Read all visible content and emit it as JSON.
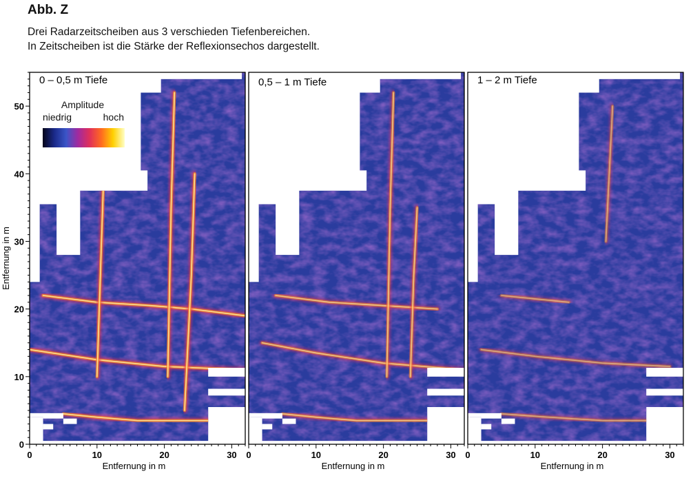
{
  "figure": {
    "label": "Abb. Z",
    "caption": [
      "Drei Radarzeitscheiben aus 3 verschieden Tiefenbereichen.",
      "In Zeitscheiben ist die Stärke der Reflexionsechos dargestellt."
    ]
  },
  "legend": {
    "title": "Amplitude",
    "low_label": "niedrig",
    "high_label": "hoch",
    "colors": [
      "#05051a",
      "#1a2a8a",
      "#3b55c8",
      "#a02aa0",
      "#e0305a",
      "#ff6a20",
      "#ffd000",
      "#ffffc8"
    ]
  },
  "chart_data": [
    {
      "type": "heatmap",
      "title": "0 – 0,5 m Tiefe",
      "xlabel": "Entfernung in m",
      "ylabel": "Entfernung in m",
      "xlim": [
        0,
        32
      ],
      "ylim": [
        0,
        55
      ],
      "xticks": [
        0,
        10,
        20,
        30
      ],
      "yticks": [
        0,
        10,
        20,
        30,
        40,
        50
      ],
      "reflection_lines": [
        {
          "x": [
            5,
            10,
            16,
            22,
            28,
            32
          ],
          "y": [
            4.5,
            4,
            3.5,
            3.5,
            3.5,
            3.5
          ]
        },
        {
          "x": [
            0,
            10,
            20,
            32
          ],
          "y": [
            14,
            12.5,
            11.5,
            11
          ]
        },
        {
          "x": [
            2,
            10,
            18,
            24,
            32
          ],
          "y": [
            22,
            21,
            20.5,
            20,
            19
          ]
        },
        {
          "x": [
            10,
            10.5,
            11
          ],
          "y": [
            10,
            25,
            40
          ]
        },
        {
          "x": [
            20.5,
            21,
            21.5
          ],
          "y": [
            10,
            35,
            52
          ]
        },
        {
          "x": [
            23,
            24,
            24.5
          ],
          "y": [
            5,
            25,
            40
          ]
        }
      ]
    },
    {
      "type": "heatmap",
      "title": "0,5 – 1 m Tiefe",
      "xlabel": "Entfernung in m",
      "ylabel": "",
      "xlim": [
        0,
        32
      ],
      "ylim": [
        0,
        55
      ],
      "xticks": [
        0,
        10,
        20,
        30
      ],
      "yticks": [],
      "reflection_lines": [
        {
          "x": [
            5,
            10,
            16,
            22,
            28
          ],
          "y": [
            4.5,
            4,
            3.5,
            3.5,
            3.5
          ]
        },
        {
          "x": [
            2,
            10,
            20,
            32
          ],
          "y": [
            15,
            13.5,
            12,
            11
          ]
        },
        {
          "x": [
            4,
            12,
            20,
            28
          ],
          "y": [
            22,
            21,
            20.5,
            20
          ]
        },
        {
          "x": [
            20.5,
            21,
            21.5
          ],
          "y": [
            10,
            35,
            52
          ]
        },
        {
          "x": [
            24,
            24.5,
            25
          ],
          "y": [
            10,
            25,
            35
          ]
        }
      ]
    },
    {
      "type": "heatmap",
      "title": "1 – 2 m Tiefe",
      "xlabel": "Entfernung in m",
      "ylabel": "",
      "xlim": [
        0,
        32
      ],
      "ylim": [
        0,
        55
      ],
      "xticks": [
        0,
        10,
        20,
        30
      ],
      "yticks": [],
      "reflection_lines": [
        {
          "x": [
            5,
            12,
            20,
            28
          ],
          "y": [
            4.5,
            4,
            3.5,
            3.5
          ]
        },
        {
          "x": [
            2,
            10,
            20,
            30
          ],
          "y": [
            14,
            13,
            12,
            11.5
          ]
        },
        {
          "x": [
            5,
            10,
            15
          ],
          "y": [
            22,
            21.5,
            21
          ]
        },
        {
          "x": [
            20.5,
            21,
            21.5
          ],
          "y": [
            30,
            40,
            50
          ]
        }
      ]
    }
  ]
}
